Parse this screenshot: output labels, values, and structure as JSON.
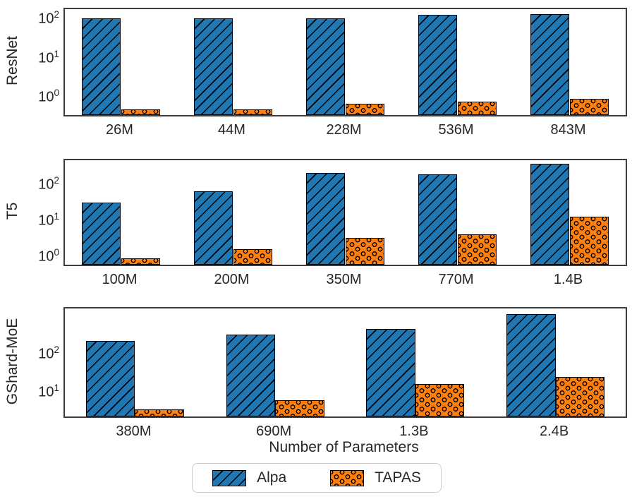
{
  "figure": {
    "xlabel": "Number of Parameters",
    "legend": [
      {
        "label": "Alpa",
        "color": "#1f77b4",
        "hatch": "diagonal-lines"
      },
      {
        "label": "TAPAS",
        "color": "#ff7f0e",
        "hatch": "circles"
      }
    ],
    "text_color": "#262626",
    "spine_color": "#3d3d3d",
    "bar_edge_color": "#000000"
  },
  "chart_data": [
    {
      "type": "bar",
      "row_label": "ResNet",
      "yscale": "log",
      "categories": [
        "26M",
        "44M",
        "228M",
        "536M",
        "843M"
      ],
      "series": [
        {
          "name": "Alpa",
          "values": [
            95,
            95,
            95,
            113,
            118
          ]
        },
        {
          "name": "TAPAS",
          "values": [
            0.45,
            0.45,
            0.61,
            0.69,
            0.83
          ]
        }
      ],
      "ylim": [
        0.32,
        160
      ],
      "ytick_exponents": [
        0,
        1,
        2
      ],
      "grid": false
    },
    {
      "type": "bar",
      "row_label": "T5",
      "yscale": "log",
      "categories": [
        "100M",
        "200M",
        "350M",
        "770M",
        "1.4B"
      ],
      "series": [
        {
          "name": "Alpa",
          "values": [
            28,
            58,
            185,
            172,
            340
          ]
        },
        {
          "name": "TAPAS",
          "values": [
            0.8,
            1.45,
            3.0,
            3.7,
            11.4
          ]
        }
      ],
      "ylim": [
        0.53,
        425
      ],
      "ytick_exponents": [
        0,
        1,
        2
      ],
      "grid": false
    },
    {
      "type": "bar",
      "row_label": "GShard-MoE",
      "yscale": "log",
      "categories": [
        "380M",
        "690M",
        "1.3B",
        "2.4B"
      ],
      "series": [
        {
          "name": "Alpa",
          "values": [
            195,
            285,
            410,
            980
          ]
        },
        {
          "name": "TAPAS",
          "values": [
            3.1,
            5.5,
            14.5,
            22
          ]
        }
      ],
      "ylim": [
        2.05,
        1380
      ],
      "ytick_exponents": [
        1,
        2
      ],
      "grid": false
    }
  ]
}
